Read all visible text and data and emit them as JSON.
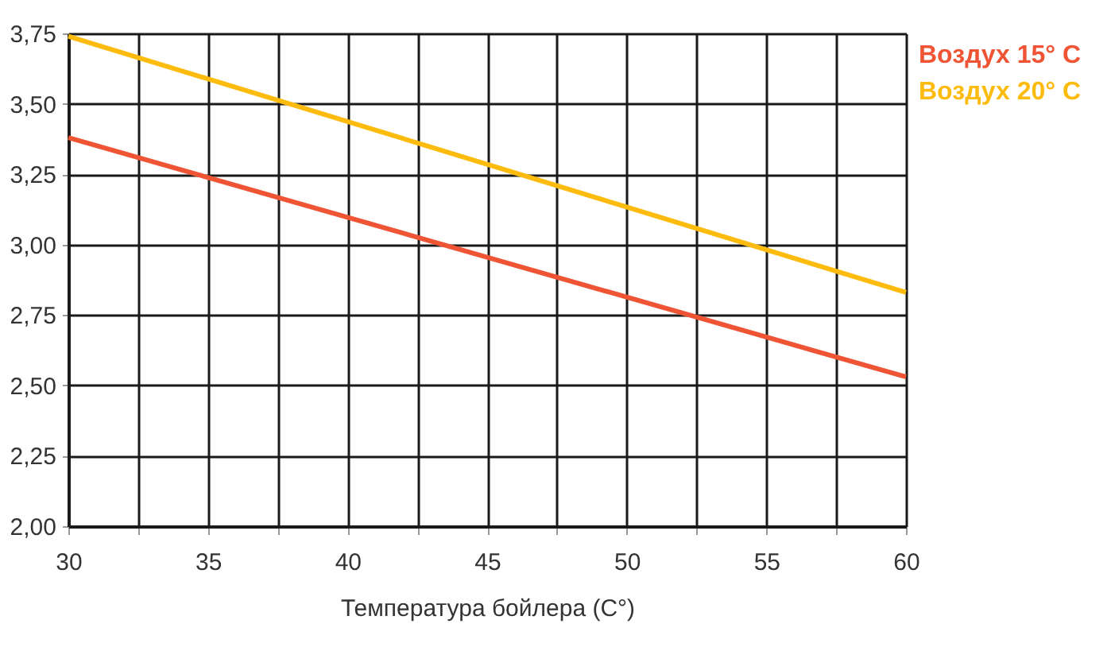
{
  "chart_data": {
    "type": "line",
    "xlabel": "Температура бойлера (C°)",
    "x": [
      30,
      60
    ],
    "series": [
      {
        "name": "Воздух 15° C",
        "color": "#ef5535",
        "values": [
          3.38,
          2.53
        ]
      },
      {
        "name": "Воздух 20° C",
        "color": "#fcbb0d",
        "values": [
          3.74,
          2.83
        ]
      }
    ],
    "xlim": [
      30,
      60
    ],
    "xticks": [
      30,
      {
        "value": 32.5,
        "label": null
      },
      35,
      {
        "value": 37.5,
        "label": null
      },
      40,
      {
        "value": 42.5,
        "label": null
      },
      45,
      {
        "value": 47.5,
        "label": null
      },
      50,
      {
        "value": 52.5,
        "label": null
      },
      55,
      {
        "value": 57.5,
        "label": null
      },
      60
    ],
    "ylim": [
      2.0,
      3.75
    ],
    "yticks": [
      {
        "value": 2.0,
        "label": "2,00"
      },
      {
        "value": 2.25,
        "label": "2,25"
      },
      {
        "value": 2.5,
        "label": "2,50"
      },
      {
        "value": 2.75,
        "label": "2,75"
      },
      {
        "value": 3.0,
        "label": "3,00"
      },
      {
        "value": 3.25,
        "label": "3,25"
      },
      {
        "value": 3.5,
        "label": "3,50"
      },
      {
        "value": 3.75,
        "label": "3,75"
      }
    ],
    "grid": true,
    "legend": "top right",
    "marker": "none",
    "line_style": "solid"
  }
}
